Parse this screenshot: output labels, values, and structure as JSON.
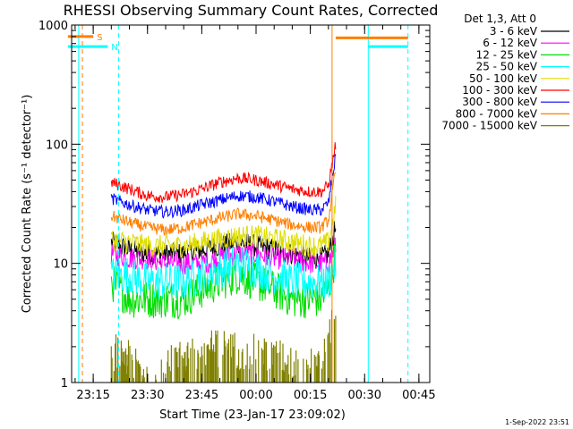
{
  "chart_data": {
    "type": "line",
    "title": "RHESSI Observing Summary Count Rates, Corrected",
    "xlabel": "Start Time (23-Jan-17 23:09:02)",
    "ylabel": "Corrected Count Rate (s⁻¹ detector⁻¹)",
    "y_scale": "log",
    "ylim": [
      1,
      1000
    ],
    "xlim": [
      "23:09:02",
      "00:48:00"
    ],
    "y_tick_labels": [
      "1",
      "10",
      "100",
      "1000"
    ],
    "x_tick_labels": [
      "23:15",
      "23:30",
      "23:45",
      "00:00",
      "00:15",
      "00:30",
      "00:45"
    ],
    "legend_title": "Det 1,3, Att 0",
    "legend_placement": "right",
    "grid": false,
    "timestamp": "1-Sep-2022 23:51",
    "flags": [
      {
        "label": "S",
        "color": "#ff7f00",
        "start": "23:08",
        "end": "23:15",
        "level": 800
      },
      {
        "label": "N",
        "color": "#00ffff",
        "start": "23:08",
        "end": "23:19",
        "level": 660
      },
      {
        "label": "",
        "color": "#ff7f00",
        "start": "00:22",
        "end": "00:42",
        "level": 780
      },
      {
        "label": "",
        "color": "#00ffff",
        "start": "00:31",
        "end": "00:42",
        "level": 660
      }
    ],
    "vertical_lines": [
      {
        "time": "23:12",
        "color": "#ff7f00",
        "style": "dashed"
      },
      {
        "time": "23:22",
        "color": "#00ffff",
        "style": "dashed"
      },
      {
        "time": "00:42",
        "color": "#00ffff",
        "style": "dashed"
      },
      {
        "time": "00:21",
        "color": "#ff7f00",
        "style": "solid"
      },
      {
        "time": "23:11",
        "color": "#00ffff",
        "style": "solid"
      },
      {
        "time": "00:31",
        "color": "#00ffff",
        "style": "solid"
      }
    ],
    "x": [
      "23:20",
      "23:25",
      "23:30",
      "23:35",
      "23:40",
      "23:45",
      "23:50",
      "23:55",
      "00:00",
      "00:05",
      "00:10",
      "00:15",
      "00:18",
      "00:20",
      "00:22"
    ],
    "series": [
      {
        "name": "3 - 6 keV",
        "color": "#000000",
        "values": [
          15,
          13,
          12,
          12,
          12,
          13,
          14,
          15,
          14,
          13,
          12,
          11,
          11,
          12,
          20
        ]
      },
      {
        "name": "6 - 12 keV",
        "color": "#ff00ff",
        "values": [
          12,
          11,
          11,
          10,
          10,
          10,
          11,
          12,
          12,
          11,
          11,
          10,
          10,
          10,
          14
        ]
      },
      {
        "name": "12 - 25 keV",
        "color": "#00dd00",
        "values": [
          7,
          5,
          5,
          5,
          5,
          6,
          7,
          8,
          7,
          6,
          5,
          5,
          5,
          6,
          12
        ]
      },
      {
        "name": "25 - 50 keV",
        "color": "#00ffff",
        "values": [
          8,
          8,
          7,
          7,
          7,
          8,
          9,
          10,
          9,
          8,
          7,
          7,
          7,
          7,
          10
        ]
      },
      {
        "name": "50 - 100 keV",
        "color": "#dddd00",
        "values": [
          16,
          15,
          14,
          14,
          14,
          15,
          16,
          17,
          17,
          16,
          15,
          14,
          14,
          15,
          30
        ]
      },
      {
        "name": "100 - 300 keV",
        "color": "#ff0000",
        "values": [
          48,
          42,
          37,
          36,
          38,
          42,
          48,
          52,
          50,
          46,
          42,
          40,
          40,
          45,
          100
        ]
      },
      {
        "name": "300 - 800 keV",
        "color": "#0000ff",
        "values": [
          35,
          31,
          28,
          27,
          28,
          31,
          34,
          37,
          36,
          33,
          30,
          28,
          28,
          32,
          80
        ]
      },
      {
        "name": "800 - 7000 keV",
        "color": "#ff7f00",
        "values": [
          25,
          22,
          20,
          19,
          20,
          22,
          24,
          26,
          25,
          23,
          21,
          20,
          20,
          23,
          60
        ]
      },
      {
        "name": "7000 - 15000 keV",
        "color": "#808000",
        "values": [
          1.8,
          1.5,
          1.0,
          1.3,
          1.6,
          1.8,
          1.9,
          1.8,
          1.7,
          1.6,
          1.4,
          1.3,
          1.4,
          2.2,
          3.5
        ]
      }
    ]
  }
}
